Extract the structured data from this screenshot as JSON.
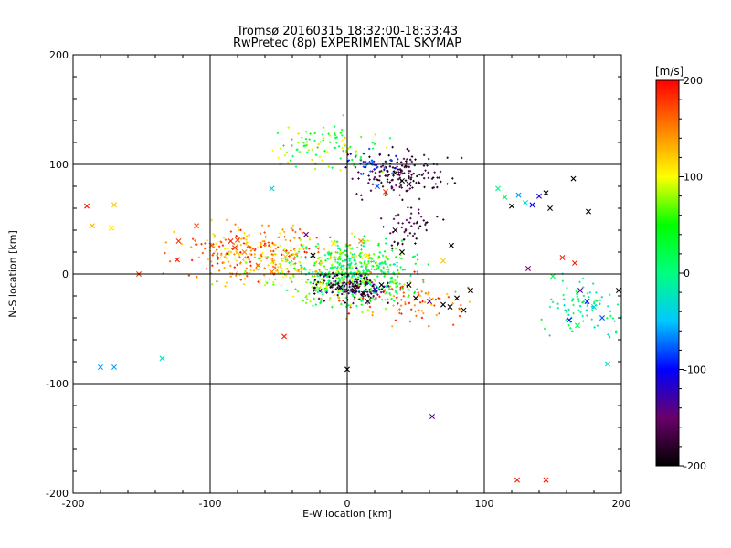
{
  "chart_data": {
    "type": "scatter",
    "title": "Tromsø 20160315 18:32:00-18:33:43",
    "subtitle": "RwPretec (8p) EXPERIMENTAL SKYMAP",
    "xlabel": "E-W location [km]",
    "ylabel": "N-S location [km]",
    "xlim": [
      -200,
      200
    ],
    "ylim": [
      -200,
      200
    ],
    "xticks": [
      -200,
      -100,
      0,
      100,
      200
    ],
    "yticks": [
      -200,
      -100,
      0,
      100,
      200
    ],
    "grid_lines": [
      -100,
      0,
      100
    ],
    "colorbar": {
      "label": "[m/s]",
      "range": [
        -200,
        200
      ],
      "ticks": [
        -200,
        -100,
        0,
        100,
        200
      ],
      "colors": [
        "#000000",
        "#6a006a",
        "#0000ff",
        "#00c8ff",
        "#00ff7f",
        "#00ff00",
        "#ffff00",
        "#ff8000",
        "#ff0000"
      ]
    },
    "series": [
      {
        "marker": "x",
        "points": [
          [
            -190,
            62,
            190
          ],
          [
            -186,
            44,
            130
          ],
          [
            -172,
            42,
            110
          ],
          [
            -170,
            63,
            120
          ],
          [
            -152,
            0,
            180
          ],
          [
            -123,
            30,
            180
          ],
          [
            -124,
            13,
            190
          ],
          [
            -110,
            44,
            170
          ],
          [
            -180,
            -85,
            -60
          ],
          [
            -170,
            -85,
            -60
          ],
          [
            -135,
            -77,
            -30
          ],
          [
            -99,
            26,
            160
          ],
          [
            -85,
            30,
            190
          ],
          [
            -82,
            24,
            185
          ],
          [
            -80,
            31,
            170
          ],
          [
            -75,
            20,
            150
          ],
          [
            -65,
            8,
            160
          ],
          [
            -55,
            2,
            150
          ],
          [
            -46,
            -57,
            190
          ],
          [
            -45,
            16,
            120
          ],
          [
            -55,
            78,
            -40
          ],
          [
            -30,
            36,
            -150
          ],
          [
            -25,
            17,
            -200
          ],
          [
            -10,
            28,
            110
          ],
          [
            0,
            -87,
            -200
          ],
          [
            10,
            30,
            150
          ],
          [
            15,
            17,
            110
          ],
          [
            22,
            80,
            -80
          ],
          [
            28,
            75,
            180
          ],
          [
            35,
            92,
            -200
          ],
          [
            40,
            85,
            -200
          ],
          [
            45,
            82,
            -180
          ],
          [
            35,
            40,
            -190
          ],
          [
            40,
            20,
            -200
          ],
          [
            45,
            -10,
            -200
          ],
          [
            50,
            -22,
            -200
          ],
          [
            60,
            -25,
            -140
          ],
          [
            70,
            -28,
            -200
          ],
          [
            75,
            -30,
            -200
          ],
          [
            80,
            -22,
            -200
          ],
          [
            85,
            -33,
            -190
          ],
          [
            90,
            -15,
            -200
          ],
          [
            76,
            26,
            -200
          ],
          [
            70,
            12,
            120
          ],
          [
            62,
            -130,
            -140
          ],
          [
            110,
            78,
            0
          ],
          [
            115,
            70,
            20
          ],
          [
            120,
            62,
            -200
          ],
          [
            125,
            72,
            -60
          ],
          [
            130,
            65,
            -30
          ],
          [
            135,
            63,
            -100
          ],
          [
            140,
            71,
            -110
          ],
          [
            145,
            74,
            -200
          ],
          [
            148,
            60,
            -190
          ],
          [
            165,
            87,
            -200
          ],
          [
            176,
            57,
            -200
          ],
          [
            157,
            15,
            190
          ],
          [
            166,
            10,
            190
          ],
          [
            150,
            -2,
            20
          ],
          [
            170,
            -15,
            -130
          ],
          [
            175,
            -25,
            -100
          ],
          [
            180,
            -30,
            -40
          ],
          [
            186,
            -40,
            -80
          ],
          [
            162,
            -42,
            -100
          ],
          [
            168,
            -47,
            20
          ],
          [
            190,
            -82,
            -30
          ],
          [
            198,
            -15,
            -200
          ],
          [
            124,
            -188,
            190
          ],
          [
            145,
            -188,
            190
          ],
          [
            132,
            5,
            -150
          ],
          [
            5,
            -15,
            -200
          ],
          [
            12,
            -18,
            -200
          ],
          [
            -5,
            -12,
            -200
          ],
          [
            15,
            -25,
            -190
          ],
          [
            25,
            -10,
            -200
          ]
        ]
      },
      {
        "marker": "dot",
        "points": []
      }
    ]
  }
}
